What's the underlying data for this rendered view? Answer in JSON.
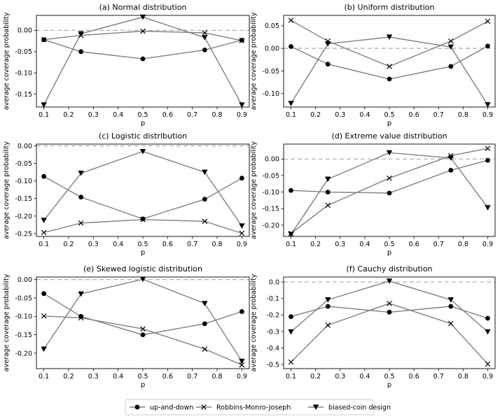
{
  "legend": {
    "placement": "bottom-center",
    "entries": [
      {
        "label": "up-and-down",
        "marker": "circle"
      },
      {
        "label": "Robbins-Monro-Joseph",
        "marker": "x"
      },
      {
        "label": "biased-coin design",
        "marker": "triangle-down"
      }
    ]
  },
  "colors": {
    "line": "#808080",
    "marker": "#000000",
    "reference": "#aaaaaa"
  },
  "chart_data": [
    {
      "type": "line",
      "title": "(a) Normal distribution",
      "xlabel": "p",
      "ylabel": "average coverage probability",
      "x": [
        0.1,
        0.25,
        0.5,
        0.75,
        0.9
      ],
      "xlim": [
        0.07,
        0.93
      ],
      "ylim": [
        -0.18,
        0.035
      ],
      "xticks": [
        "0.1",
        "0.2",
        "0.3",
        "0.4",
        "0.5",
        "0.6",
        "0.7",
        "0.8",
        "0.9"
      ],
      "xtick_values": [
        0.1,
        0.2,
        0.3,
        0.4,
        0.5,
        0.6,
        0.7,
        0.8,
        0.9
      ],
      "yticks": [
        "0.00",
        "-0.05",
        "-0.10",
        "-0.15"
      ],
      "ytick_values": [
        0,
        -0.05,
        -0.1,
        -0.15
      ],
      "reference_line": 0,
      "series": [
        {
          "name": "up-and-down",
          "values": [
            -0.022,
            -0.05,
            -0.067,
            -0.046,
            -0.023
          ]
        },
        {
          "name": "Robbins-Monro-Joseph",
          "values": [
            -0.022,
            -0.012,
            -0.002,
            -0.006,
            -0.024
          ]
        },
        {
          "name": "biased-coin design",
          "values": [
            -0.175,
            -0.008,
            0.031,
            -0.017,
            -0.175
          ]
        }
      ]
    },
    {
      "type": "line",
      "title": "(b) Uniform distribution",
      "xlabel": "p",
      "ylabel": "average coverage probability",
      "x": [
        0.1,
        0.25,
        0.5,
        0.75,
        0.9
      ],
      "xlim": [
        0.07,
        0.93
      ],
      "ylim": [
        -0.13,
        0.073
      ],
      "xticks": [
        "0.1",
        "0.2",
        "0.3",
        "0.4",
        "0.5",
        "0.6",
        "0.7",
        "0.8",
        "0.9"
      ],
      "xtick_values": [
        0.1,
        0.2,
        0.3,
        0.4,
        0.5,
        0.6,
        0.7,
        0.8,
        0.9
      ],
      "yticks": [
        "0.05",
        "0.00",
        "-0.05",
        "-0.10"
      ],
      "ytick_values": [
        0.05,
        0,
        -0.05,
        -0.1
      ],
      "reference_line": 0,
      "series": [
        {
          "name": "up-and-down",
          "values": [
            0.004,
            -0.035,
            -0.068,
            -0.04,
            0.005
          ]
        },
        {
          "name": "Robbins-Monro-Joseph",
          "values": [
            0.062,
            0.016,
            -0.04,
            0.016,
            0.06
          ]
        },
        {
          "name": "biased-coin design",
          "values": [
            -0.122,
            0.01,
            0.025,
            0.003,
            -0.125
          ]
        }
      ]
    },
    {
      "type": "line",
      "title": "(c) Logistic distribution",
      "xlabel": "p",
      "ylabel": "average coverage probability",
      "x": [
        0.1,
        0.25,
        0.5,
        0.75,
        0.9
      ],
      "xlim": [
        0.07,
        0.93
      ],
      "ylim": [
        -0.258,
        0.005
      ],
      "xticks": [
        "0.1",
        "0.2",
        "0.3",
        "0.4",
        "0.5",
        "0.6",
        "0.7",
        "0.8",
        "0.9"
      ],
      "xtick_values": [
        0.1,
        0.2,
        0.3,
        0.4,
        0.5,
        0.6,
        0.7,
        0.8,
        0.9
      ],
      "yticks": [
        "0.00",
        "-0.05",
        "-0.10",
        "-0.15",
        "-0.20",
        "-0.25"
      ],
      "ytick_values": [
        0,
        -0.05,
        -0.1,
        -0.15,
        -0.2,
        -0.25
      ],
      "reference_line": 0,
      "series": [
        {
          "name": "up-and-down",
          "values": [
            -0.087,
            -0.146,
            -0.208,
            -0.152,
            -0.092
          ]
        },
        {
          "name": "Robbins-Monro-Joseph",
          "values": [
            -0.247,
            -0.22,
            -0.21,
            -0.215,
            -0.249
          ]
        },
        {
          "name": "biased-coin design",
          "values": [
            -0.212,
            -0.078,
            -0.016,
            -0.075,
            -0.228
          ]
        }
      ]
    },
    {
      "type": "line",
      "title": "(d) Extreme value distribution",
      "xlabel": "p",
      "ylabel": "average coverage probability",
      "x": [
        0.1,
        0.25,
        0.5,
        0.75,
        0.9
      ],
      "xlim": [
        0.07,
        0.93
      ],
      "ylim": [
        -0.234,
        0.045
      ],
      "xticks": [
        "0.1",
        "0.2",
        "0.3",
        "0.4",
        "0.5",
        "0.6",
        "0.7",
        "0.8",
        "0.9"
      ],
      "xtick_values": [
        0.1,
        0.2,
        0.3,
        0.4,
        0.5,
        0.6,
        0.7,
        0.8,
        0.9
      ],
      "yticks": [
        "0.00",
        "-0.05",
        "-0.10",
        "-0.15",
        "-0.20"
      ],
      "ytick_values": [
        0,
        -0.05,
        -0.1,
        -0.15,
        -0.2
      ],
      "reference_line": 0,
      "series": [
        {
          "name": "up-and-down",
          "values": [
            -0.095,
            -0.1,
            -0.103,
            -0.034,
            -0.004
          ]
        },
        {
          "name": "Robbins-Monro-Joseph",
          "values": [
            -0.225,
            -0.14,
            -0.058,
            0.01,
            0.032
          ]
        },
        {
          "name": "biased-coin design",
          "values": [
            -0.228,
            -0.061,
            0.019,
            0.003,
            -0.147
          ]
        }
      ]
    },
    {
      "type": "line",
      "title": "(e) Skewed logistic distribution",
      "xlabel": "p",
      "ylabel": "average coverage probability",
      "x": [
        0.1,
        0.25,
        0.5,
        0.75,
        0.9
      ],
      "xlim": [
        0.07,
        0.93
      ],
      "ylim": [
        -0.242,
        0.007
      ],
      "xticks": [
        "0.1",
        "0.2",
        "0.3",
        "0.4",
        "0.5",
        "0.6",
        "0.7",
        "0.8",
        "0.9"
      ],
      "xtick_values": [
        0.1,
        0.2,
        0.3,
        0.4,
        0.5,
        0.6,
        0.7,
        0.8,
        0.9
      ],
      "yticks": [
        "0.00",
        "-0.05",
        "-0.10",
        "-0.15",
        "-0.20"
      ],
      "ytick_values": [
        0,
        -0.05,
        -0.1,
        -0.15,
        -0.2
      ],
      "reference_line": 0,
      "series": [
        {
          "name": "up-and-down",
          "values": [
            -0.038,
            -0.1,
            -0.15,
            -0.12,
            -0.087
          ]
        },
        {
          "name": "Robbins-Monro-Joseph",
          "values": [
            -0.099,
            -0.104,
            -0.134,
            -0.189,
            -0.232
          ]
        },
        {
          "name": "biased-coin design",
          "values": [
            -0.189,
            -0.039,
            0.001,
            -0.065,
            -0.222
          ]
        }
      ]
    },
    {
      "type": "line",
      "title": "(f) Cauchy distribution",
      "xlabel": "p",
      "ylabel": "average coverage probability",
      "x": [
        0.1,
        0.25,
        0.5,
        0.75,
        0.9
      ],
      "xlim": [
        0.07,
        0.93
      ],
      "ylim": [
        -0.525,
        0.03
      ],
      "xticks": [
        "0.1",
        "0.2",
        "0.3",
        "0.4",
        "0.5",
        "0.6",
        "0.7",
        "0.8",
        "0.9"
      ],
      "xtick_values": [
        0.1,
        0.2,
        0.3,
        0.4,
        0.5,
        0.6,
        0.7,
        0.8,
        0.9
      ],
      "yticks": [
        "0.0",
        "-0.1",
        "-0.2",
        "-0.3",
        "-0.4",
        "-0.5"
      ],
      "ytick_values": [
        0,
        -0.1,
        -0.2,
        -0.3,
        -0.4,
        -0.5
      ],
      "reference_line": 0,
      "series": [
        {
          "name": "up-and-down",
          "values": [
            -0.21,
            -0.148,
            -0.183,
            -0.148,
            -0.22
          ]
        },
        {
          "name": "Robbins-Monro-Joseph",
          "values": [
            -0.485,
            -0.262,
            -0.13,
            -0.252,
            -0.497
          ]
        },
        {
          "name": "biased-coin design",
          "values": [
            -0.302,
            -0.108,
            0.005,
            -0.108,
            -0.302
          ]
        }
      ]
    }
  ]
}
